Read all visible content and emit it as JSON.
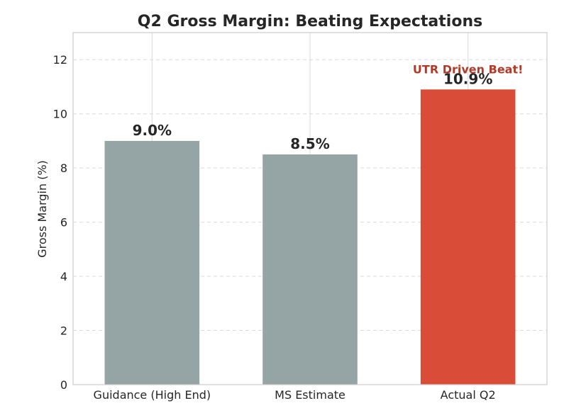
{
  "chart_data": {
    "type": "bar",
    "title": "Q2 Gross Margin: Beating Expectations",
    "xlabel": "",
    "ylabel": "Gross Margin (%)",
    "categories": [
      "Guidance (High End)",
      "MS Estimate",
      "Actual Q2"
    ],
    "values": [
      9.0,
      8.5,
      10.9
    ],
    "value_labels": [
      "9.0%",
      "8.5%",
      "10.9%"
    ],
    "ylim": [
      0,
      13
    ],
    "yticks": [
      0,
      2,
      4,
      6,
      8,
      10,
      12
    ],
    "grid": true,
    "bar_colors": [
      "#95a5a6",
      "#95a5a6",
      "#d94d38"
    ],
    "annotation": {
      "text": "UTR Driven Beat!",
      "category": "Actual Q2",
      "color": "#b03a27"
    }
  }
}
